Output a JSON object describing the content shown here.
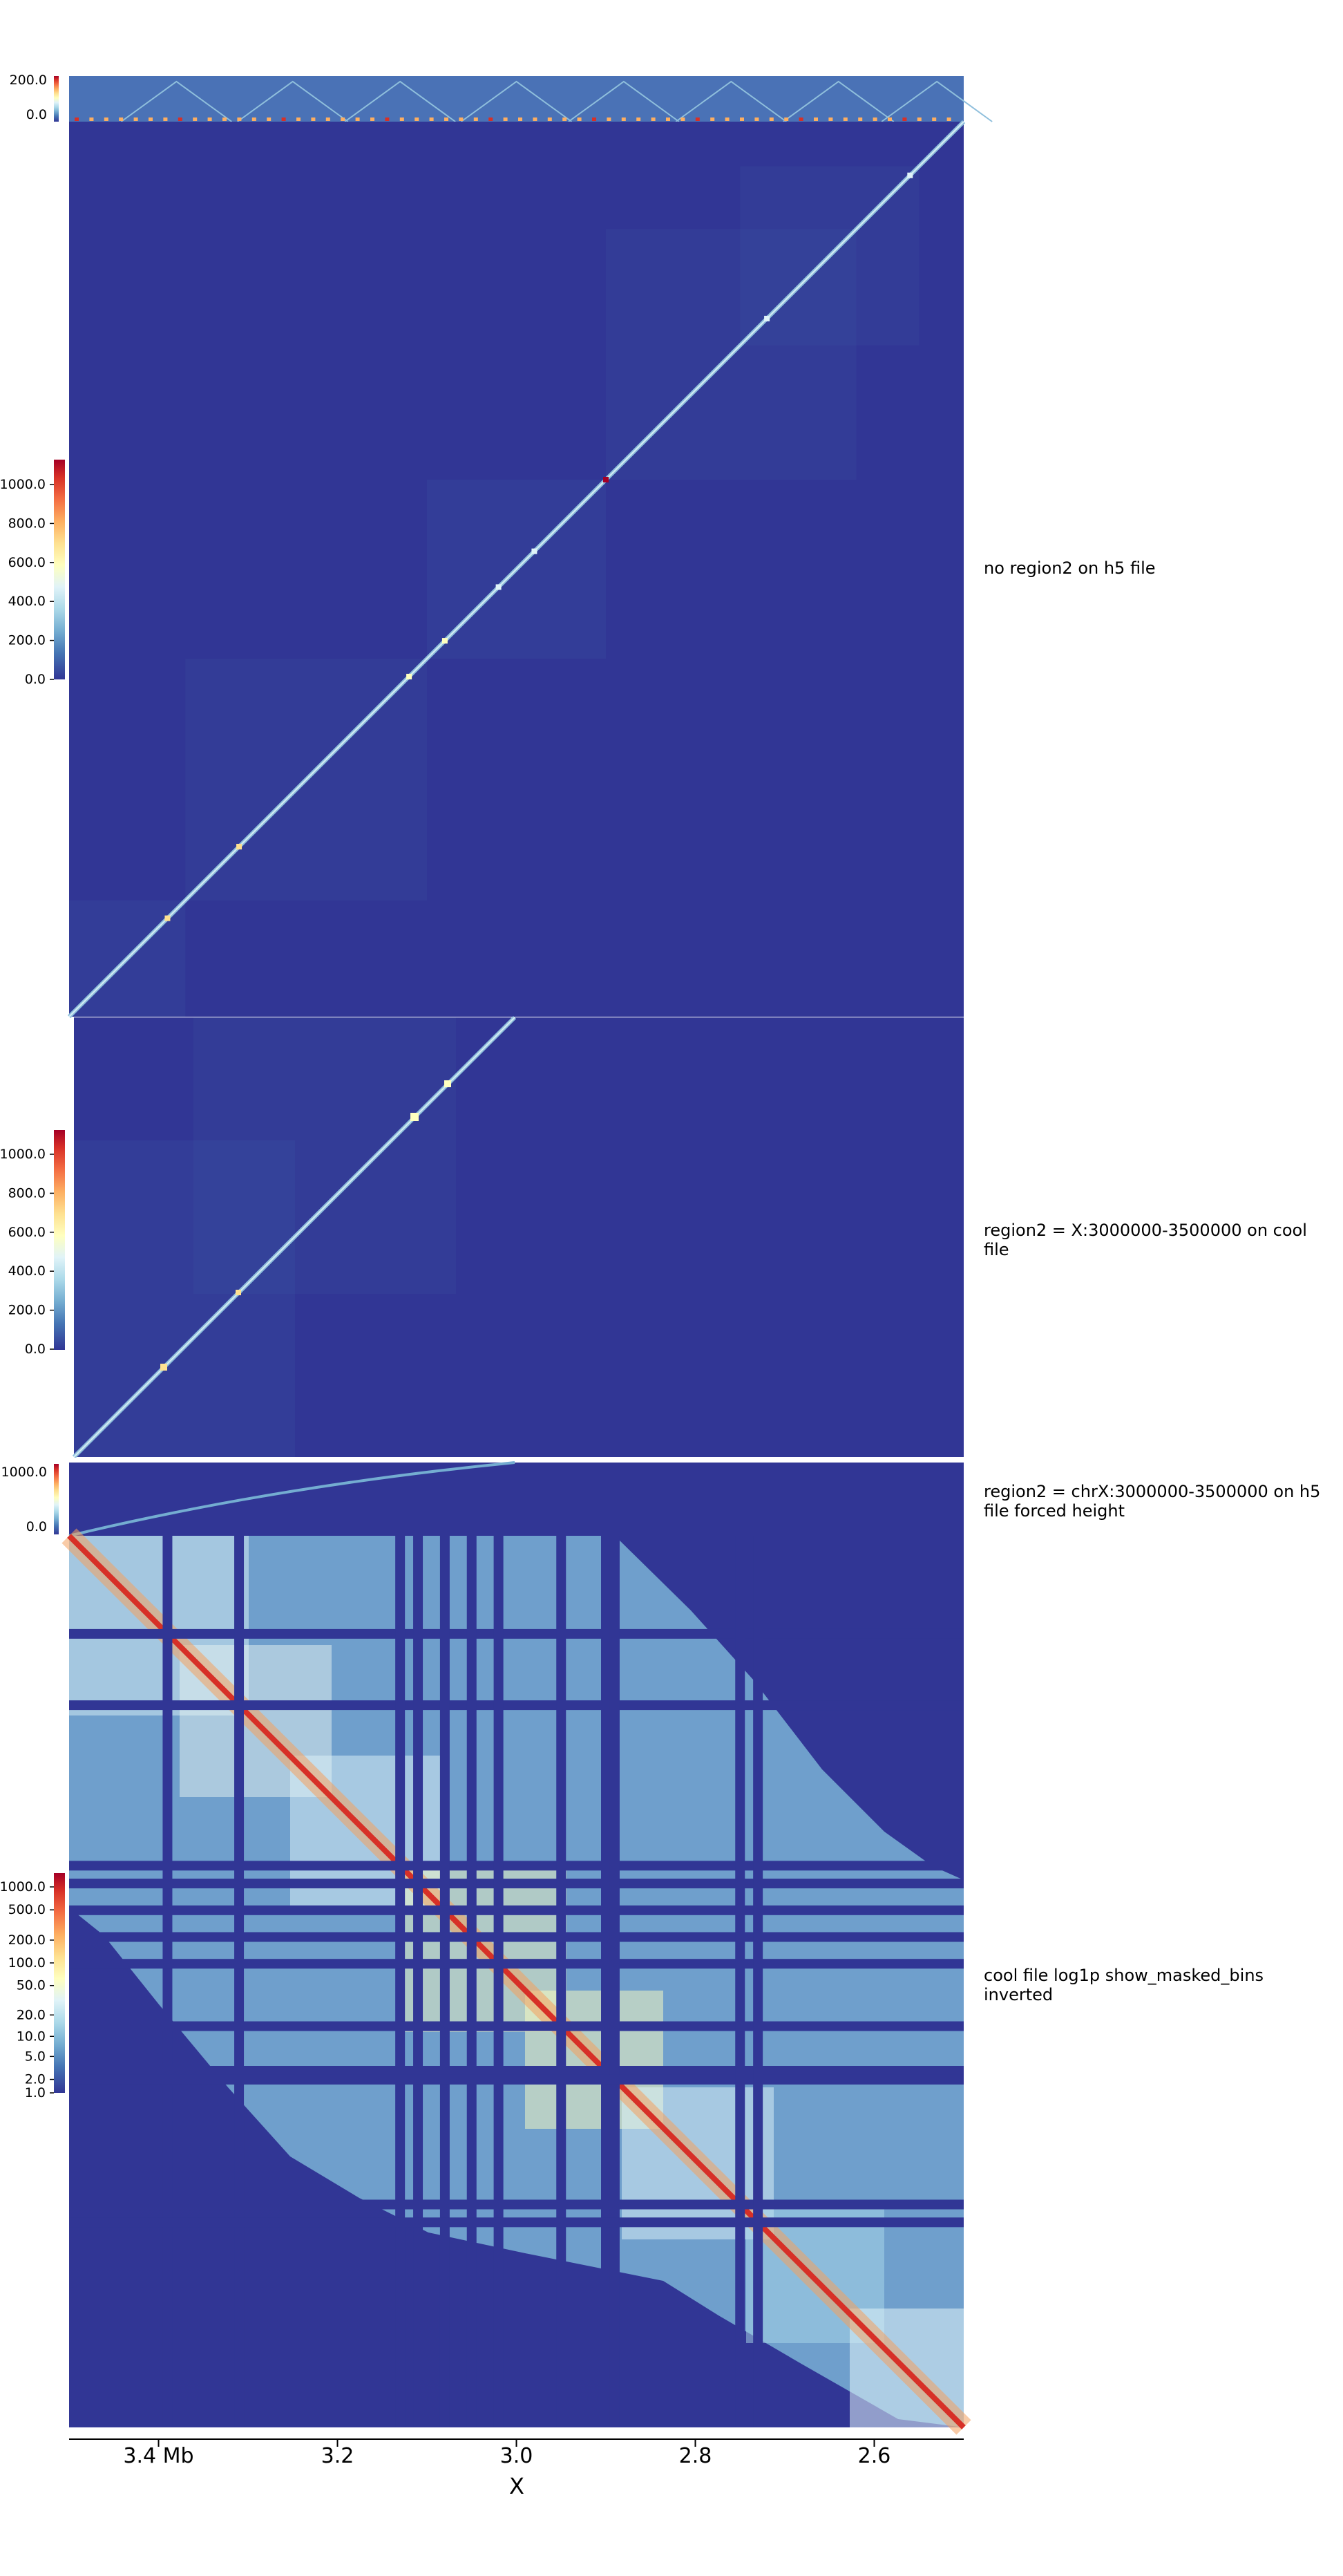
{
  "colors": {
    "background": "#313695",
    "colormap": [
      "#313695",
      "#4575b4",
      "#74add1",
      "#abd9e9",
      "#e0f3f8",
      "#ffffbf",
      "#fee090",
      "#fdae61",
      "#f46d43",
      "#d73027",
      "#a50026"
    ]
  },
  "chart_data": [
    {
      "type": "heatmap",
      "name": "no region2 on h5 file",
      "region_mb": [
        2.5,
        3.5
      ],
      "top_profile": {
        "type": "line",
        "ylim": [
          0,
          200
        ],
        "ticks": [
          "200.0",
          "0.0"
        ]
      },
      "colorbar": {
        "ticks": [
          "1000.0",
          "800.0",
          "600.0",
          "400.0",
          "200.0",
          "0.0"
        ],
        "range": [
          0,
          1000
        ]
      },
      "diagonal_domains_mb": [
        {
          "start": 3.39,
          "end": 3.4,
          "value": 600
        },
        {
          "start": 3.31,
          "end": 3.32,
          "value": 550
        },
        {
          "start": 3.12,
          "end": 3.13,
          "value": 500
        },
        {
          "start": 3.08,
          "end": 3.09,
          "value": 450
        },
        {
          "start": 3.02,
          "end": 3.03,
          "value": 420
        },
        {
          "start": 2.98,
          "end": 2.99,
          "value": 400
        },
        {
          "start": 2.9,
          "end": 2.92,
          "value": 1000
        },
        {
          "start": 2.72,
          "end": 2.73,
          "value": 420
        },
        {
          "start": 2.56,
          "end": 2.57,
          "value": 350
        }
      ]
    },
    {
      "type": "heatmap",
      "name": "region2 = X:3000000-3500000 on cool file",
      "region2": "X:3000000-3500000",
      "colorbar": {
        "ticks": [
          "1000.0",
          "800.0",
          "600.0",
          "400.0",
          "200.0",
          "0.0"
        ],
        "range": [
          0,
          1000
        ]
      }
    },
    {
      "type": "heatmap",
      "name": "region2 = chrX:3000000-3500000 on h5 file forced height",
      "region2": "chrX:3000000-3500000",
      "colorbar": {
        "ticks": [
          "1000.0",
          "0.0"
        ],
        "range": [
          0,
          1000
        ]
      }
    },
    {
      "type": "heatmap",
      "name": "cool file log1p show_masked_bins inverted",
      "scale": "log1p",
      "colorbar": {
        "ticks": [
          "1000.0",
          "500.0",
          "200.0",
          "100.0",
          "50.0",
          "20.0",
          "10.0",
          "5.0",
          "2.0",
          "1.0"
        ],
        "range": [
          1,
          1000
        ]
      },
      "masked_bins_mb": [
        3.39,
        3.31,
        3.13,
        3.11,
        3.08,
        3.05,
        3.02,
        2.95,
        2.9,
        2.89,
        2.75,
        2.73
      ]
    }
  ],
  "tracks": {
    "t1_label": "no region2 on h5 file",
    "t2_label": "region2 = X:3000000-3500000 on cool file",
    "t3_label": "region2 = chrX:3000000-3500000 on h5 file forced height",
    "t4_label": "cool file log1p show_masked_bins inverted",
    "t1_profile_ticks": [
      "200.0",
      "0.0"
    ],
    "t1_cb_ticks": [
      "1000.0",
      "800.0",
      "600.0",
      "400.0",
      "200.0",
      "0.0"
    ],
    "t2_cb_ticks": [
      "1000.0",
      "800.0",
      "600.0",
      "400.0",
      "200.0",
      "0.0"
    ],
    "t3_cb_ticks": [
      "1000.0",
      "0.0"
    ],
    "t4_cb_ticks": [
      "1000.0",
      "500.0",
      "200.0",
      "100.0",
      "50.0",
      "20.0",
      "10.0",
      "5.0",
      "2.0",
      "1.0"
    ]
  },
  "x_axis": {
    "label": "X",
    "range_mb": [
      2.5,
      3.5
    ],
    "inverted": true,
    "ticks": [
      {
        "value": 3.4,
        "label": "3.4 Mb"
      },
      {
        "value": 3.2,
        "label": "3.2"
      },
      {
        "value": 3.0,
        "label": "3.0"
      },
      {
        "value": 2.8,
        "label": "2.8"
      },
      {
        "value": 2.6,
        "label": "2.6"
      }
    ]
  }
}
